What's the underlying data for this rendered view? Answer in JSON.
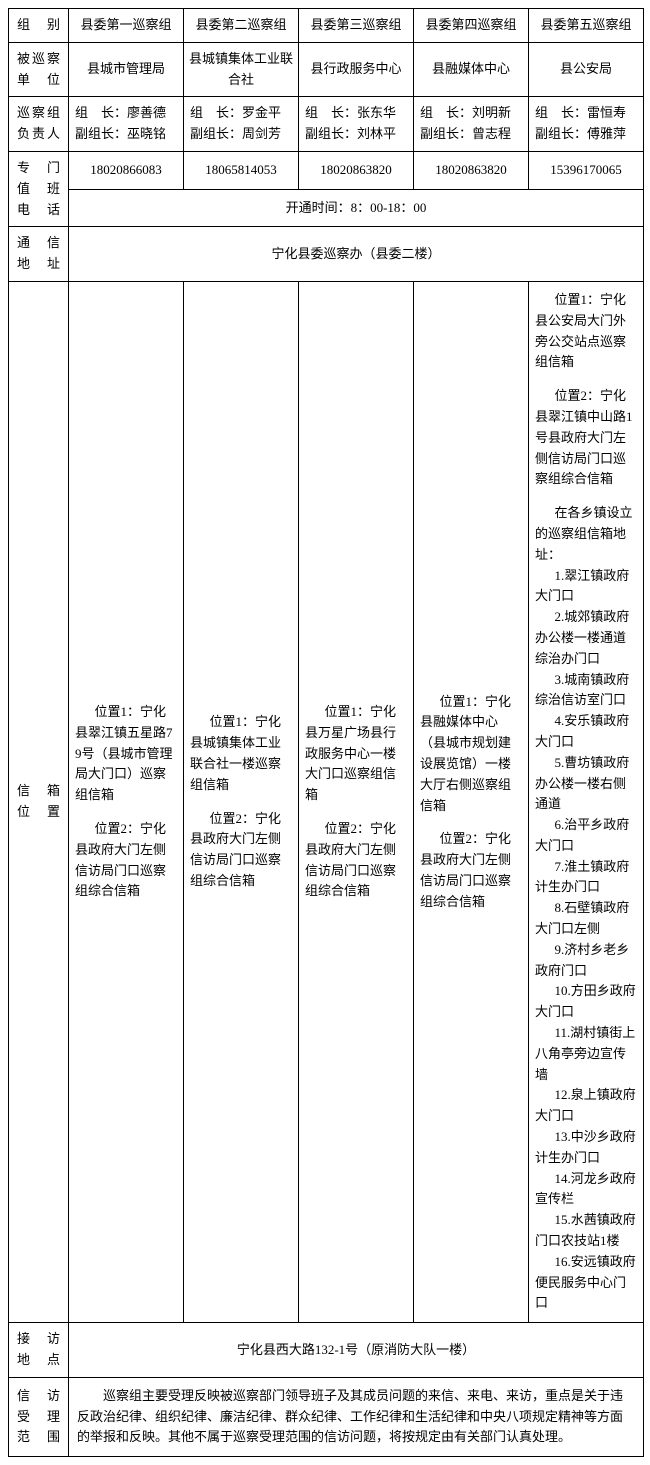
{
  "headers": {
    "group": "组　别",
    "inspectedUnit": "被巡察单　位",
    "leaders": "巡察组负责人",
    "phone": "专　门值　班电　话",
    "address": "通　信地　址",
    "mailbox": "信　箱位　置",
    "reception": "接　访地　点",
    "scope": "信　访受　理范　围"
  },
  "groups": {
    "g1": "县委第一巡察组",
    "g2": "县委第二巡察组",
    "g3": "县委第三巡察组",
    "g4": "县委第四巡察组",
    "g5": "县委第五巡察组"
  },
  "units": {
    "u1": "县城市管理局",
    "u2": "县城镇集体工业联合社",
    "u3": "县行政服务中心",
    "u4": "县融媒体中心",
    "u5": "县公安局"
  },
  "leaders": {
    "l1a": "组　长：廖善德",
    "l1b": "副组长：巫晓铭",
    "l2a": "组　长：罗金平",
    "l2b": "副组长：周剑芳",
    "l3a": "组　长：张东华",
    "l3b": "副组长：刘林平",
    "l4a": "组　长：刘明新",
    "l4b": "副组长：曾志程",
    "l5a": "组　长：雷恒寿",
    "l5b": "副组长：傅雅萍"
  },
  "phones": {
    "p1": "18020866083",
    "p2": "18065814053",
    "p3": "18020863820",
    "p4": "18020863820",
    "p5": "15396170065",
    "hours": "开通时间：8：00-18：00"
  },
  "address": "宁化县委巡察办（县委二楼）",
  "mailbox": {
    "m1a": "位置1：宁化县翠江镇五星路79号（县城市管理局大门口）巡察组信箱",
    "m1b": "位置2：宁化县政府大门左侧信访局门口巡察组综合信箱",
    "m2a": "位置1：宁化县城镇集体工业联合社一楼巡察组信箱",
    "m2b": "位置2：宁化县政府大门左侧信访局门口巡察组综合信箱",
    "m3a": "位置1：宁化县万星广场县行政服务中心一楼大门口巡察组信箱",
    "m3b": "位置2：宁化县政府大门左侧信访局门口巡察组综合信箱",
    "m4a": "位置1：宁化县融媒体中心（县城市规划建设展览馆）一楼大厅右侧巡察组信箱",
    "m4b": "位置2：宁化县政府大门左侧信访局门口巡察组综合信箱",
    "m5a": "位置1：宁化县公安局大门外旁公交站点巡察组信箱",
    "m5b": "位置2：宁化县翠江镇中山路1号县政府大门左侧信访局门口巡察组综合信箱",
    "m5hdr": "在各乡镇设立的巡察组信箱地址：",
    "m5_1": "1.翠江镇政府大门口",
    "m5_2": "2.城郊镇政府办公楼一楼通道综治办门口",
    "m5_3": "3.城南镇政府综治信访室门口",
    "m5_4": "4.安乐镇政府大门口",
    "m5_5": "5.曹坊镇政府办公楼一楼右侧通道",
    "m5_6": "6.治平乡政府大门口",
    "m5_7": "7.淮土镇政府计生办门口",
    "m5_8": "8.石壁镇政府大门口左侧",
    "m5_9": "9.济村乡老乡政府门口",
    "m5_10": "10.方田乡政府大门口",
    "m5_11": "11.湖村镇街上八角亭旁边宣传墙",
    "m5_12": "12.泉上镇政府大门口",
    "m5_13": "13.中沙乡政府计生办门口",
    "m5_14": "14.河龙乡政府宣传栏",
    "m5_15": "15.水茜镇政府门口农技站1楼",
    "m5_16": "16.安远镇政府便民服务中心门口"
  },
  "reception": "宁化县西大路132-1号（原消防大队一楼）",
  "scope": "巡察组主要受理反映被巡察部门领导班子及其成员问题的来信、来电、来访，重点是关于违反政治纪律、组织纪律、廉洁纪律、群众纪律、工作纪律和生活纪律和中央八项规定精神等方面的举报和反映。其他不属于巡察受理范围的信访问题，将按规定由有关部门认真处理。"
}
